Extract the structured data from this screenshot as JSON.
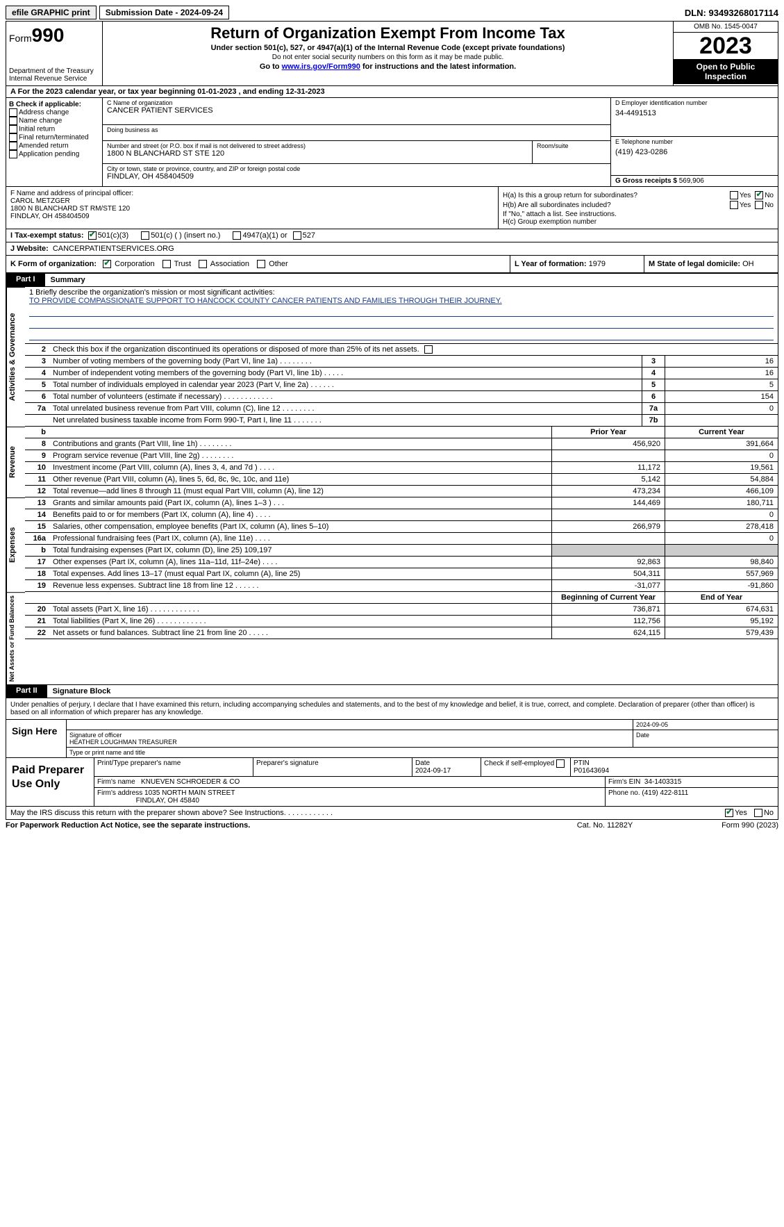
{
  "topbar": {
    "efile": "efile GRAPHIC print",
    "submission": "Submission Date - 2024-09-24",
    "dln": "DLN: 93493268017114"
  },
  "header": {
    "form_label": "Form",
    "form_num": "990",
    "dept": "Department of the Treasury Internal Revenue Service",
    "title": "Return of Organization Exempt From Income Tax",
    "sub1": "Under section 501(c), 527, or 4947(a)(1) of the Internal Revenue Code (except private foundations)",
    "sub2": "Do not enter social security numbers on this form as it may be made public.",
    "sub3_pre": "Go to ",
    "sub3_link": "www.irs.gov/Form990",
    "sub3_post": " for instructions and the latest information.",
    "omb": "OMB No. 1545-0047",
    "year": "2023",
    "open": "Open to Public Inspection"
  },
  "rowA": "A For the 2023 calendar year, or tax year beginning 01-01-2023    , and ending 12-31-2023",
  "colB": {
    "hdr": "B Check if applicable:",
    "o1": "Address change",
    "o2": "Name change",
    "o3": "Initial return",
    "o4": "Final return/terminated",
    "o5": "Amended return",
    "o6": "Application pending"
  },
  "colC": {
    "name_lbl": "C Name of organization",
    "name": "CANCER PATIENT SERVICES",
    "dba_lbl": "Doing business as",
    "addr_lbl": "Number and street (or P.O. box if mail is not delivered to street address)",
    "addr": "1800 N BLANCHARD ST STE 120",
    "room_lbl": "Room/suite",
    "city_lbl": "City or town, state or province, country, and ZIP or foreign postal code",
    "city": "FINDLAY, OH  458404509"
  },
  "colD": {
    "lbl": "D Employer identification number",
    "val": "34-4491513"
  },
  "colE": {
    "lbl": "E Telephone number",
    "val": "(419) 423-0286"
  },
  "colG": {
    "lbl": "G Gross receipts $",
    "val": "569,906"
  },
  "colF": {
    "lbl": "F  Name and address of principal officer:",
    "name": "CAROL METZGER",
    "addr1": "1800 N BLANCHARD ST RM/STE 120",
    "addr2": "FINDLAY, OH  458404509"
  },
  "colH": {
    "ha": "H(a)  Is this a group return for subordinates?",
    "hb": "H(b)  Are all subordinates included?",
    "hb_note": "If \"No,\" attach a list. See instructions.",
    "hc": "H(c)  Group exemption number",
    "yes": "Yes",
    "no": "No"
  },
  "rowI": {
    "lbl": "I  Tax-exempt status:",
    "o1": "501(c)(3)",
    "o2": "501(c) (  ) (insert no.)",
    "o3": "4947(a)(1) or",
    "o4": "527"
  },
  "rowJ": {
    "lbl": "J  Website:",
    "val": "CANCERPATIENTSERVICES.ORG"
  },
  "rowK": {
    "lbl": "K Form of organization:",
    "o1": "Corporation",
    "o2": "Trust",
    "o3": "Association",
    "o4": "Other"
  },
  "rowL": {
    "lbl": "L Year of formation:",
    "val": "1979"
  },
  "rowM": {
    "lbl": "M State of legal domicile:",
    "val": "OH"
  },
  "part1": {
    "num": "Part I",
    "title": "Summary"
  },
  "mission": {
    "lbl": "1   Briefly describe the organization's mission or most significant activities:",
    "txt": "TO PROVIDE COMPASSIONATE SUPPORT TO HANCOCK COUNTY CANCER PATIENTS AND FAMILIES THROUGH THEIR JOURNEY."
  },
  "r2": "Check this box           if the organization discontinued its operations or disposed of more than 25% of its net assets.",
  "vtab1": "Activities & Governance",
  "vtab2": "Revenue",
  "vtab3": "Expenses",
  "vtab4": "Net Assets or Fund Balances",
  "rows_gov": [
    {
      "n": "3",
      "t": "Number of voting members of the governing body (Part VI, line 1a)   .    .    .    .    .    .    .    .",
      "b": "3",
      "v": "16"
    },
    {
      "n": "4",
      "t": "Number of independent voting members of the governing body (Part VI, line 1b)   .    .    .    .    .",
      "b": "4",
      "v": "16"
    },
    {
      "n": "5",
      "t": "Total number of individuals employed in calendar year 2023 (Part V, line 2a)   .    .    .    .    .    .",
      "b": "5",
      "v": "5"
    },
    {
      "n": "6",
      "t": "Total number of volunteers (estimate if necessary)   .    .    .    .    .    .    .    .    .    .    .    .",
      "b": "6",
      "v": "154"
    },
    {
      "n": "7a",
      "t": "Total unrelated business revenue from Part VIII, column (C), line 12   .    .    .    .    .    .    .    .",
      "b": "7a",
      "v": "0"
    },
    {
      "n": "",
      "t": "Net unrelated business taxable income from Form 990-T, Part I, line 11   .    .    .    .    .    .    .",
      "b": "7b",
      "v": ""
    }
  ],
  "hdr_rev": {
    "n": "b",
    "p": "Prior Year",
    "c": "Current Year"
  },
  "rows_rev": [
    {
      "n": "8",
      "t": "Contributions and grants (Part VIII, line 1h)   .    .    .    .    .    .    .    .",
      "p": "456,920",
      "c": "391,664"
    },
    {
      "n": "9",
      "t": "Program service revenue (Part VIII, line 2g)   .    .    .    .    .    .    .    .",
      "p": "",
      "c": "0"
    },
    {
      "n": "10",
      "t": "Investment income (Part VIII, column (A), lines 3, 4, and 7d )   .    .    .    .",
      "p": "11,172",
      "c": "19,561"
    },
    {
      "n": "11",
      "t": "Other revenue (Part VIII, column (A), lines 5, 6d, 8c, 9c, 10c, and 11e)",
      "p": "5,142",
      "c": "54,884"
    },
    {
      "n": "12",
      "t": "Total revenue—add lines 8 through 11 (must equal Part VIII, column (A), line 12)",
      "p": "473,234",
      "c": "466,109"
    }
  ],
  "rows_exp": [
    {
      "n": "13",
      "t": "Grants and similar amounts paid (Part IX, column (A), lines 1–3 )   .    .    .",
      "p": "144,469",
      "c": "180,711"
    },
    {
      "n": "14",
      "t": "Benefits paid to or for members (Part IX, column (A), line 4)   .    .    .    .",
      "p": "",
      "c": "0"
    },
    {
      "n": "15",
      "t": "Salaries, other compensation, employee benefits (Part IX, column (A), lines 5–10)",
      "p": "266,979",
      "c": "278,418"
    },
    {
      "n": "16a",
      "t": "Professional fundraising fees (Part IX, column (A), line 11e)   .    .    .    .",
      "p": "",
      "c": "0"
    },
    {
      "n": "b",
      "t": "Total fundraising expenses (Part IX, column (D), line 25) 109,197",
      "p": "SHADE",
      "c": "SHADE"
    },
    {
      "n": "17",
      "t": "Other expenses (Part IX, column (A), lines 11a–11d, 11f–24e)   .    .    .    .",
      "p": "92,863",
      "c": "98,840"
    },
    {
      "n": "18",
      "t": "Total expenses. Add lines 13–17 (must equal Part IX, column (A), line 25)",
      "p": "504,311",
      "c": "557,969"
    },
    {
      "n": "19",
      "t": "Revenue less expenses. Subtract line 18 from line 12   .    .    .    .    .    .",
      "p": "-31,077",
      "c": "-91,860"
    }
  ],
  "hdr_net": {
    "p": "Beginning of Current Year",
    "c": "End of Year"
  },
  "rows_net": [
    {
      "n": "20",
      "t": "Total assets (Part X, line 16)   .    .    .    .    .    .    .    .    .    .    .    .",
      "p": "736,871",
      "c": "674,631"
    },
    {
      "n": "21",
      "t": "Total liabilities (Part X, line 26)   .    .    .    .    .    .    .    .    .    .    .    .",
      "p": "112,756",
      "c": "95,192"
    },
    {
      "n": "22",
      "t": "Net assets or fund balances. Subtract line 21 from line 20   .    .    .    .    .",
      "p": "624,115",
      "c": "579,439"
    }
  ],
  "part2": {
    "num": "Part II",
    "title": "Signature Block"
  },
  "sig_text": "Under penalties of perjury, I declare that I have examined this return, including accompanying schedules and statements, and to the best of my knowledge and belief, it is true, correct, and complete. Declaration of preparer (other than officer) is based on all information of which preparer has any knowledge.",
  "sign": {
    "here": "Sign Here",
    "date": "2024-09-05",
    "sig_lbl": "Signature of officer",
    "name": "HEATHER LOUGHMAN  TREASURER",
    "type_lbl": "Type or print name and title",
    "date_lbl": "Date"
  },
  "prep": {
    "title": "Paid Preparer Use Only",
    "h1": "Print/Type preparer's name",
    "h2": "Preparer's signature",
    "h3": "Date",
    "h3v": "2024-09-17",
    "h4": "Check          if self-employed",
    "h5": "PTIN",
    "h5v": "P01643694",
    "firm_lbl": "Firm's name",
    "firm": "KNUEVEN SCHROEDER & CO",
    "ein_lbl": "Firm's EIN",
    "ein": "34-1403315",
    "addr_lbl": "Firm's address",
    "addr1": "1035 NORTH MAIN STREET",
    "addr2": "FINDLAY, OH  45840",
    "phone_lbl": "Phone no.",
    "phone": "(419) 422-8111"
  },
  "discuss": {
    "txt": "May the IRS discuss this return with the preparer shown above? See Instructions.   .    .    .    .    .    .    .    .    .    .    .",
    "yes": "Yes",
    "no": "No"
  },
  "footer": {
    "left": "For Paperwork Reduction Act Notice, see the separate instructions.",
    "mid": "Cat. No. 11282Y",
    "right": "Form 990 (2023)"
  }
}
